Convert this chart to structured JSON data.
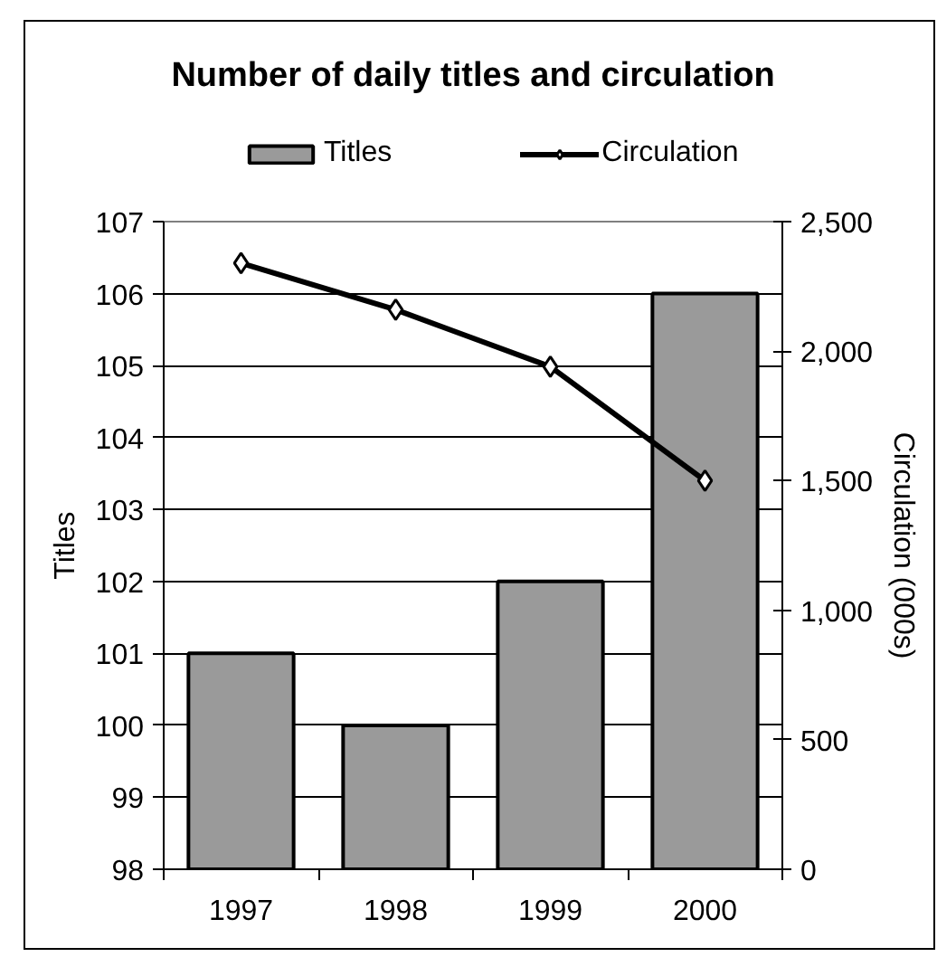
{
  "chart_data": {
    "type": "bar",
    "title": "Number of daily titles and circulation",
    "ylabel": "Titles",
    "y2label": "Circulation (000s)",
    "categories": [
      "1997",
      "1998",
      "1999",
      "2000"
    ],
    "series": [
      {
        "name": "Titles",
        "color": "#9a9a9a",
        "values": [
          101,
          100,
          102,
          106
        ]
      },
      {
        "name": "Circulation",
        "type": "line",
        "axis": "y2",
        "color": "#000000",
        "values": [
          2340,
          2160,
          1940,
          1500
        ]
      }
    ],
    "marker": "diamond",
    "ylim": [
      98,
      107
    ],
    "yticks": [
      98,
      99,
      100,
      101,
      102,
      103,
      104,
      105,
      106,
      107
    ],
    "y2lim": [
      0,
      2500
    ],
    "y2ticks": [
      0,
      500,
      {
        "value": 1000,
        "label": "1,000"
      },
      {
        "value": 1500,
        "label": "1,500"
      },
      {
        "value": 2000,
        "label": "2,000"
      },
      {
        "value": 2500,
        "label": "2,500"
      }
    ],
    "grid": "y",
    "legend": "top"
  }
}
